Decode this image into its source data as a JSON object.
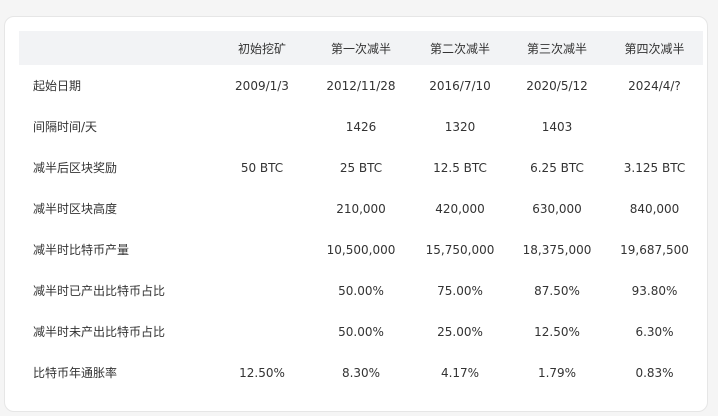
{
  "table": {
    "headers": [
      "",
      "初始挖矿",
      "第一次减半",
      "第二次减半",
      "第三次减半",
      "第四次减半"
    ],
    "rows": [
      {
        "label": "起始日期",
        "values": [
          "2009/1/3",
          "2012/11/28",
          "2016/7/10",
          "2020/5/12",
          "2024/4/?"
        ]
      },
      {
        "label": "间隔时间/天",
        "values": [
          "",
          "1426",
          "1320",
          "1403",
          ""
        ]
      },
      {
        "label": "减半后区块奖励",
        "values": [
          "50 BTC",
          "25 BTC",
          "12.5 BTC",
          "6.25 BTC",
          "3.125 BTC"
        ]
      },
      {
        "label": "减半时区块高度",
        "values": [
          "",
          "210,000",
          "420,000",
          "630,000",
          "840,000"
        ]
      },
      {
        "label": "减半时比特币产量",
        "values": [
          "",
          "10,500,000",
          "15,750,000",
          "18,375,000",
          "19,687,500"
        ]
      },
      {
        "label": "减半时已产出比特币占比",
        "values": [
          "",
          "50.00%",
          "75.00%",
          "87.50%",
          "93.80%"
        ]
      },
      {
        "label": "减半时未产出比特币占比",
        "values": [
          "",
          "50.00%",
          "25.00%",
          "12.50%",
          "6.30%"
        ]
      },
      {
        "label": "比特币年通胀率",
        "values": [
          "12.50%",
          "8.30%",
          "4.17%",
          "1.79%",
          "0.83%"
        ]
      }
    ]
  },
  "colors": {
    "header_bg": "#f2f3f5",
    "text": "#333333",
    "card_border": "#e6e6e6",
    "page_bg": "#f5f5f5"
  }
}
